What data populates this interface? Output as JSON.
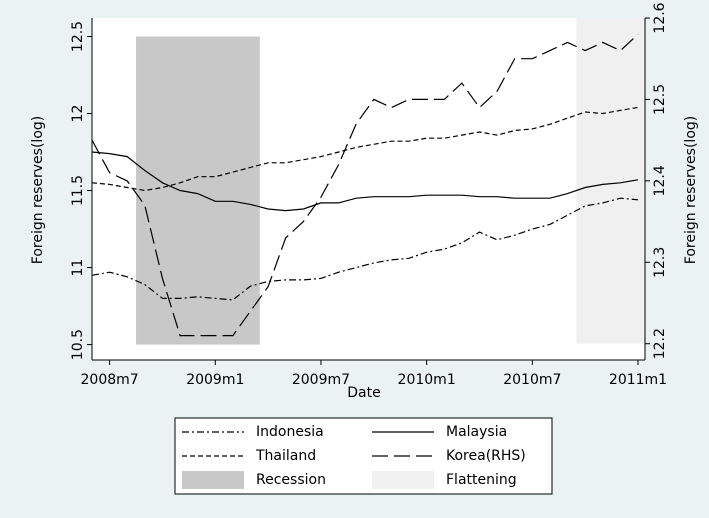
{
  "chart_data": {
    "type": "line",
    "xlabel": "Date",
    "ylabel": "Foreign reserves(log)",
    "y2label": "Foreign reserves(log)",
    "categories": [
      null,
      "2008m7",
      null,
      null,
      null,
      null,
      null,
      "2009m1",
      null,
      null,
      null,
      null,
      null,
      "2009m7",
      null,
      null,
      null,
      null,
      null,
      "2010m1",
      null,
      null,
      null,
      null,
      null,
      "2010m7",
      null,
      null,
      null,
      null,
      null,
      "2011m1"
    ],
    "ylim": [
      10.4,
      12.62
    ],
    "yticks": [
      10.5,
      11,
      11.5,
      12,
      12.5
    ],
    "y2lim": [
      12.18,
      12.6
    ],
    "y2ticks": [
      12.2,
      12.3,
      12.4,
      12.5,
      12.6
    ],
    "legend": "bottom",
    "series": [
      {
        "name": "Indonesia",
        "color": "#000000",
        "line_style": "dashdot",
        "values": [
          10.95,
          10.97,
          10.94,
          10.89,
          10.8,
          10.8,
          10.81,
          10.8,
          10.79,
          10.88,
          10.91,
          10.92,
          10.92,
          10.93,
          10.97,
          11.0,
          11.03,
          11.05,
          11.06,
          11.1,
          11.12,
          11.16,
          11.23,
          11.18,
          11.21,
          11.25,
          11.28,
          11.34,
          11.4,
          11.42,
          11.45,
          11.44
        ]
      },
      {
        "name": "Malaysia",
        "color": "#000000",
        "line_style": "solid",
        "values": [
          11.75,
          11.74,
          11.72,
          11.63,
          11.55,
          11.5,
          11.48,
          11.43,
          11.43,
          11.41,
          11.38,
          11.37,
          11.38,
          11.42,
          11.42,
          11.45,
          11.46,
          11.46,
          11.46,
          11.47,
          11.47,
          11.47,
          11.46,
          11.46,
          11.45,
          11.45,
          11.45,
          11.48,
          11.52,
          11.54,
          11.55,
          11.57
        ]
      },
      {
        "name": "Thailand",
        "color": "#000000",
        "line_style": "dash",
        "values": [
          11.55,
          11.54,
          11.52,
          11.5,
          11.52,
          11.55,
          11.59,
          11.59,
          11.62,
          11.65,
          11.68,
          11.68,
          11.7,
          11.72,
          11.75,
          11.78,
          11.8,
          11.82,
          11.82,
          11.84,
          11.84,
          11.86,
          11.88,
          11.86,
          11.89,
          11.9,
          11.93,
          11.97,
          12.01,
          12.0,
          12.02,
          12.04
        ]
      },
      {
        "name": "Korea(RHS)",
        "color": "#000000",
        "line_style": "longdash",
        "axis": "y2",
        "values": [
          12.45,
          12.41,
          12.4,
          12.37,
          12.28,
          12.21,
          12.21,
          12.21,
          12.21,
          12.24,
          12.27,
          12.33,
          12.35,
          12.38,
          12.42,
          12.47,
          12.5,
          12.49,
          12.5,
          12.5,
          12.5,
          12.52,
          12.49,
          12.51,
          12.55,
          12.55,
          12.56,
          12.57,
          12.56,
          12.57,
          12.56,
          12.58
        ]
      },
      {
        "name": "Recession",
        "color": "#c8c8c8",
        "type": "bar",
        "base": 10.5,
        "values": [
          null,
          null,
          null,
          12.5,
          12.5,
          12.5,
          12.5,
          12.5,
          12.5,
          12.5,
          null,
          null,
          null,
          null,
          null,
          null,
          null,
          null,
          null,
          null,
          null,
          null,
          null,
          null,
          null,
          null,
          null,
          null,
          null,
          null,
          null,
          null
        ]
      },
      {
        "name": "Flattening",
        "color": "#f0f0f0",
        "type": "bar",
        "axis": "y2",
        "base": 12.2,
        "values": [
          null,
          null,
          null,
          null,
          null,
          null,
          null,
          null,
          null,
          null,
          null,
          null,
          null,
          null,
          null,
          null,
          null,
          null,
          null,
          null,
          null,
          null,
          null,
          null,
          null,
          null,
          null,
          null,
          12.6,
          12.6,
          12.6,
          12.6
        ]
      }
    ]
  }
}
